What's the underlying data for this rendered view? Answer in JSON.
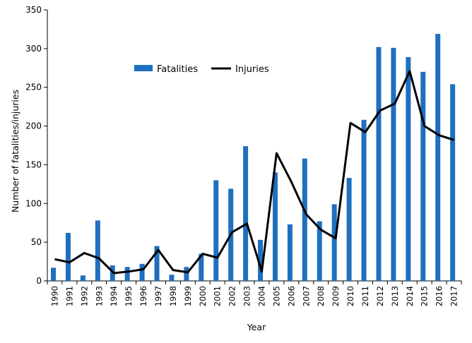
{
  "chart_data": {
    "type": "bar",
    "title": "",
    "xlabel": "Year",
    "ylabel": "Number of fatalities/injuries",
    "ylim": [
      0,
      350
    ],
    "yticks": [
      0,
      50,
      100,
      150,
      200,
      250,
      300,
      350
    ],
    "categories": [
      "1990",
      "1991",
      "1992",
      "1993",
      "1994",
      "1995",
      "1996",
      "1997",
      "1998",
      "1999",
      "2000",
      "2001",
      "2002",
      "2003",
      "2004",
      "2005",
      "2006",
      "2007",
      "2008",
      "2009",
      "2010",
      "2011",
      "2012",
      "2013",
      "2014",
      "2015",
      "2016",
      "2017"
    ],
    "series": [
      {
        "name": "Fatalities",
        "type": "bar",
        "color": "#1F6FBF",
        "values": [
          17,
          62,
          7,
          78,
          20,
          18,
          22,
          45,
          8,
          18,
          35,
          130,
          119,
          174,
          53,
          140,
          73,
          158,
          77,
          99,
          133,
          208,
          302,
          301,
          289,
          270,
          319,
          254
        ]
      },
      {
        "name": "Injuries",
        "type": "line",
        "color": "#000000",
        "values": [
          28,
          24,
          36,
          29,
          10,
          12,
          15,
          40,
          14,
          11,
          35,
          30,
          63,
          74,
          12,
          165,
          128,
          86,
          66,
          55,
          204,
          192,
          220,
          229,
          271,
          200,
          188,
          182
        ]
      }
    ],
    "legend": {
      "position": "top-center"
    },
    "grid": false
  }
}
